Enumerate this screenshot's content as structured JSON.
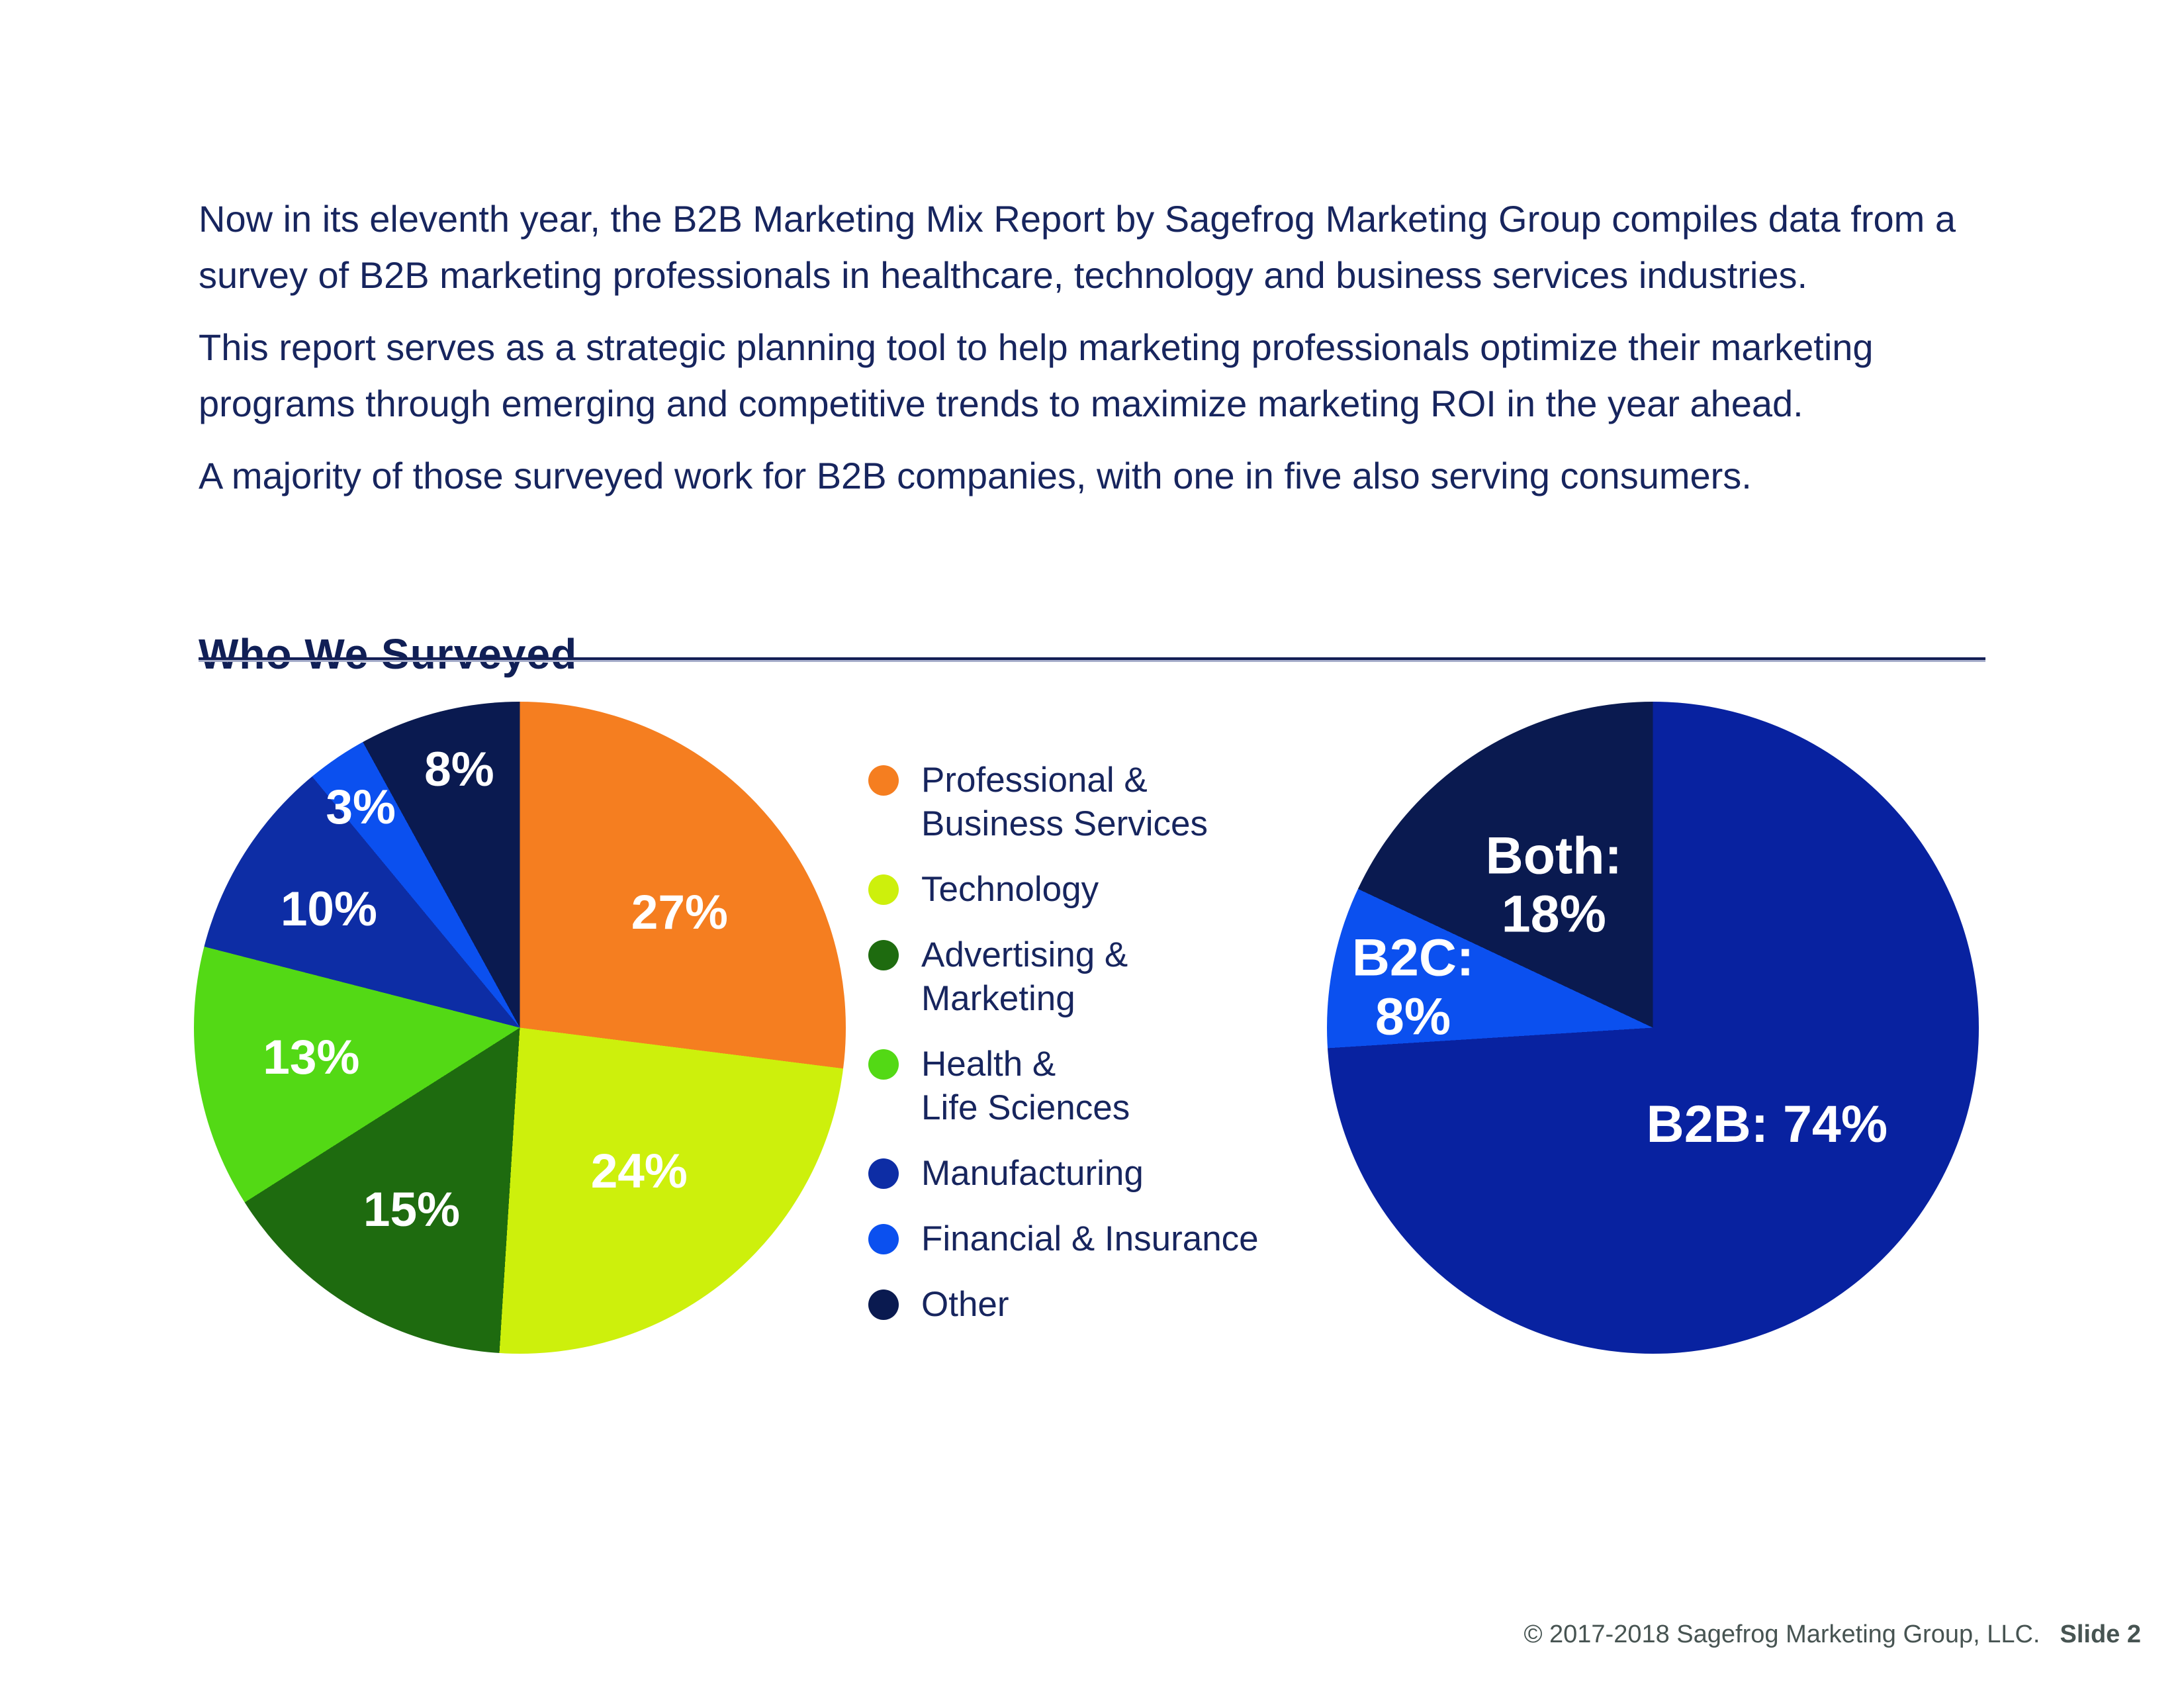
{
  "page": {
    "background": "#FFFFFF"
  },
  "intro": {
    "paragraphs": [
      "Now in its eleventh year, the B2B Marketing Mix Report by Sagefrog Marketing Group compiles data from a survey of B2B marketing professionals in healthcare, technology and business services industries.",
      "This report serves as a strategic planning tool to help marketing professionals optimize their marketing programs through emerging and competitive trends to maximize marketing ROI in the year ahead.",
      "A majority of those surveyed work for B2B companies, with one in five also serving consumers."
    ]
  },
  "section": {
    "title": "Who We Surveyed"
  },
  "chart_data": [
    {
      "type": "pie",
      "name": "industries-surveyed",
      "title": "",
      "start_angle_deg": 0,
      "direction": "clockwise",
      "legend_position": "right",
      "slices": [
        {
          "name": "Professional & Business Services",
          "name_lines": [
            "Professional &",
            "Business Services"
          ],
          "value": 27,
          "label": "27%",
          "color": "#F57E20"
        },
        {
          "name": "Technology",
          "name_lines": [
            "Technology"
          ],
          "value": 24,
          "label": "24%",
          "color": "#CDF00C"
        },
        {
          "name": "Advertising & Marketing",
          "name_lines": [
            "Advertising &",
            "Marketing"
          ],
          "value": 15,
          "label": "15%",
          "color": "#1E6B0F"
        },
        {
          "name": "Health & Life Sciences",
          "name_lines": [
            "Health &",
            "Life Sciences"
          ],
          "value": 13,
          "label": "13%",
          "color": "#53D915"
        },
        {
          "name": "Manufacturing",
          "name_lines": [
            "Manufacturing"
          ],
          "value": 10,
          "label": "10%",
          "color": "#0D2DA5"
        },
        {
          "name": "Financial & Insurance",
          "name_lines": [
            "Financial & Insurance"
          ],
          "value": 3,
          "label": "3%",
          "color": "#0B50EF"
        },
        {
          "name": "Other",
          "name_lines": [
            "Other"
          ],
          "value": 8,
          "label": "8%",
          "color": "#0A1A50"
        }
      ]
    },
    {
      "type": "pie",
      "name": "b2b-b2c-both",
      "title": "",
      "start_angle_deg": 0,
      "direction": "clockwise",
      "slices": [
        {
          "name": "B2B",
          "value": 74,
          "label": "B2B: 74%",
          "color": "#0822A0"
        },
        {
          "name": "B2C",
          "value": 8,
          "label_lines": [
            "B2C:",
            "8%"
          ],
          "color": "#0B50EF"
        },
        {
          "name": "Both",
          "value": 18,
          "label_lines": [
            "Both:",
            "18%"
          ],
          "color": "#0A1A50"
        }
      ]
    }
  ],
  "footer": {
    "copyright": "© 2017-2018 Sagefrog Marketing Group, LLC.",
    "slide": "Slide 2"
  }
}
